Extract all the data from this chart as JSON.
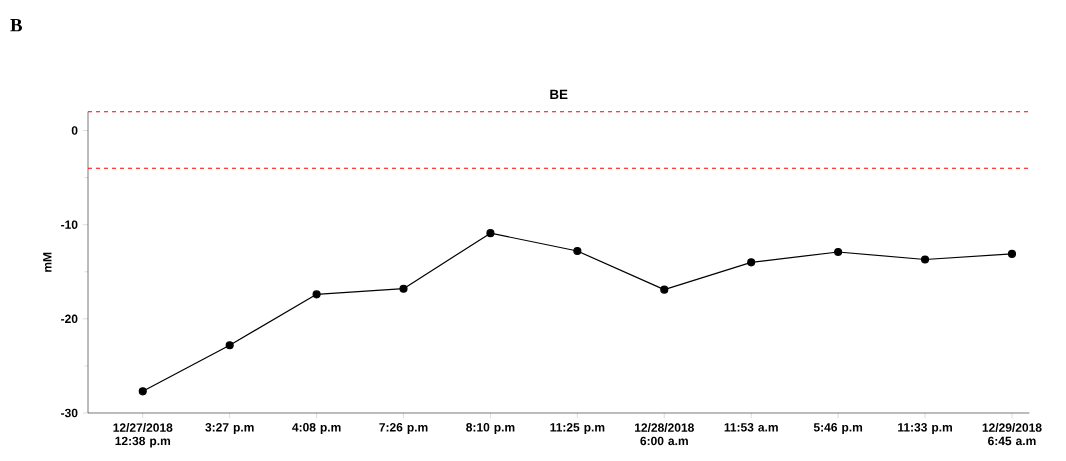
{
  "chart_data": {
    "type": "line",
    "title": "BE",
    "ylabel": "mM",
    "annotations": [
      "B"
    ],
    "categories": [
      "12/27/2018 12:38 p.m",
      "3:27 p.m",
      "4:08 p.m",
      "7:26 p.m",
      "8:10 p.m",
      "11:25 p.m",
      "12/28/2018 6:00 a.m",
      "11:53 a.m",
      "5:46 p.m",
      "11:33 p.m",
      "12/29/2018 6:45 a.m"
    ],
    "series": [
      {
        "color": "#000000",
        "values": [
          -27.7,
          -22.8,
          -17.4,
          -16.8,
          -10.9,
          -12.8,
          -16.9,
          -14.0,
          -12.9,
          -13.7,
          -13.1
        ]
      }
    ],
    "ylim": [
      -30,
      2
    ],
    "yticks": [
      -30,
      -20,
      -10,
      0
    ],
    "marker": "circle",
    "line_style": "solid",
    "ref_lines": [
      {
        "axis": "y",
        "value": 2,
        "color": "#ff0000",
        "line_style": "dashed"
      },
      {
        "axis": "y",
        "value": -4,
        "color": "#ff0000",
        "line_style": "dashed"
      }
    ]
  }
}
